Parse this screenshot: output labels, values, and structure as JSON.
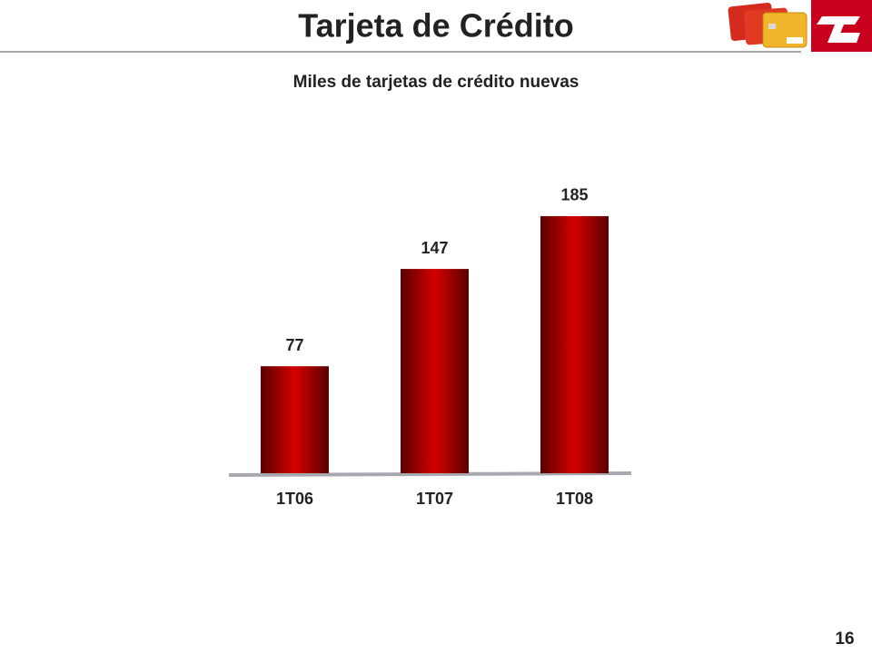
{
  "title": "Tarjeta de Crédito",
  "page_number": "16",
  "chart_data": {
    "type": "bar",
    "title": "Miles de tarjetas de crédito nuevas",
    "categories": [
      "1T06",
      "1T07",
      "1T08"
    ],
    "values": [
      77,
      147,
      185
    ],
    "color": "#d40000"
  }
}
